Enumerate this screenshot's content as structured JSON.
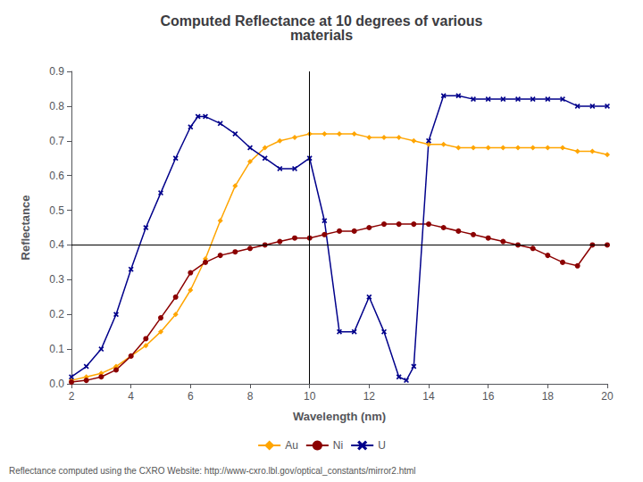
{
  "chart_data": {
    "type": "line",
    "title": "Computed Reflectance at 10 degrees of various\nmaterials",
    "xlabel": "Wavelength (nm)",
    "ylabel": "Reflectance",
    "annotations": [
      "Reflectance computed using the CXRO Website: http://www-cxro.lbl.gov/optical_constants/mirror2.html"
    ],
    "xlim": [
      2,
      20
    ],
    "ylim": [
      0,
      0.9
    ],
    "xticks": [
      2,
      4,
      6,
      8,
      10,
      12,
      14,
      16,
      18,
      20
    ],
    "yticks": [
      {
        "value": 0,
        "label": "0.0"
      },
      0.1,
      0.2,
      0.3,
      0.4,
      0.5,
      0.6,
      0.7,
      0.8,
      0.9
    ],
    "grid": false,
    "legend": "bottom",
    "hline": 0.4,
    "vline": 10,
    "series": [
      {
        "name": "Au",
        "color": "#FFA500",
        "marker": "diamond",
        "x": [
          2.0,
          2.5,
          3.0,
          3.5,
          4.0,
          4.5,
          5.0,
          5.5,
          6.0,
          6.5,
          7.0,
          7.5,
          8.0,
          8.5,
          9.0,
          9.5,
          10.0,
          10.5,
          11.0,
          11.5,
          12.0,
          12.5,
          13.0,
          13.5,
          14.0,
          14.5,
          15.0,
          15.5,
          16.0,
          16.5,
          17.0,
          17.5,
          18.0,
          18.5,
          19.0,
          19.5,
          20.0
        ],
        "values": [
          0.01,
          0.02,
          0.03,
          0.05,
          0.08,
          0.11,
          0.15,
          0.2,
          0.27,
          0.36,
          0.47,
          0.57,
          0.64,
          0.68,
          0.7,
          0.71,
          0.72,
          0.72,
          0.72,
          0.72,
          0.71,
          0.71,
          0.71,
          0.7,
          0.69,
          0.69,
          0.68,
          0.68,
          0.68,
          0.68,
          0.68,
          0.68,
          0.68,
          0.68,
          0.67,
          0.67,
          0.66
        ]
      },
      {
        "name": "Ni",
        "color": "#8B0000",
        "marker": "circle",
        "x": [
          2.0,
          2.5,
          3.0,
          3.5,
          4.0,
          4.5,
          5.0,
          5.5,
          6.0,
          6.5,
          7.0,
          7.5,
          8.0,
          8.5,
          9.0,
          9.5,
          10.0,
          10.5,
          11.0,
          11.5,
          12.0,
          12.5,
          13.0,
          13.5,
          14.0,
          14.5,
          15.0,
          15.5,
          16.0,
          16.5,
          17.0,
          17.5,
          18.0,
          18.5,
          19.0,
          19.5,
          20.0
        ],
        "values": [
          0.005,
          0.01,
          0.02,
          0.04,
          0.08,
          0.13,
          0.19,
          0.25,
          0.32,
          0.35,
          0.37,
          0.38,
          0.39,
          0.4,
          0.41,
          0.42,
          0.42,
          0.43,
          0.44,
          0.44,
          0.45,
          0.46,
          0.46,
          0.46,
          0.46,
          0.45,
          0.44,
          0.43,
          0.42,
          0.41,
          0.4,
          0.39,
          0.37,
          0.35,
          0.34,
          0.4,
          0.4
        ]
      },
      {
        "name": "U",
        "color": "#00008B",
        "marker": "x",
        "x": [
          2.0,
          2.5,
          3.0,
          3.5,
          4.0,
          4.5,
          5.0,
          5.5,
          6.0,
          6.25,
          6.5,
          7.0,
          7.5,
          8.0,
          8.5,
          9.0,
          9.5,
          10.0,
          10.5,
          11.0,
          11.5,
          12.0,
          12.5,
          13.0,
          13.25,
          13.5,
          14.0,
          14.5,
          15.0,
          15.5,
          16.0,
          16.5,
          17.0,
          17.5,
          18.0,
          18.5,
          19.0,
          19.5,
          20.0
        ],
        "values": [
          0.02,
          0.05,
          0.1,
          0.2,
          0.33,
          0.45,
          0.55,
          0.65,
          0.74,
          0.77,
          0.77,
          0.75,
          0.72,
          0.68,
          0.65,
          0.62,
          0.62,
          0.65,
          0.47,
          0.15,
          0.15,
          0.25,
          0.15,
          0.02,
          0.01,
          0.05,
          0.7,
          0.83,
          0.83,
          0.82,
          0.82,
          0.82,
          0.82,
          0.82,
          0.82,
          0.82,
          0.8,
          0.8,
          0.8
        ]
      }
    ]
  }
}
